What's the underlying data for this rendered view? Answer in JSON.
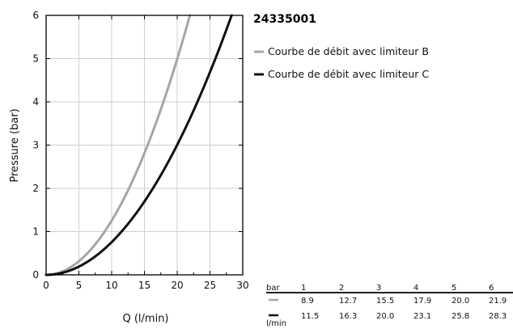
{
  "chart_data": {
    "type": "line",
    "title": "24335001",
    "xlabel": "Q (l/min)",
    "ylabel": "Pressure (bar)",
    "xlim": [
      0,
      30
    ],
    "ylim": [
      0,
      6
    ],
    "x_ticks": [
      "0",
      "5",
      "10",
      "15",
      "20",
      "25",
      "30"
    ],
    "y_ticks": [
      "0",
      "1",
      "2",
      "3",
      "4",
      "5",
      "6"
    ],
    "grid": true,
    "legend_position": "top-right",
    "series": [
      {
        "name": "Courbe de débit avec limiteur B",
        "color": "#a6a6a6",
        "x": [
          0,
          8.9,
          12.7,
          15.5,
          17.9,
          20.0,
          21.9
        ],
        "y": [
          0,
          1,
          2,
          3,
          4,
          5,
          6
        ]
      },
      {
        "name": "Courbe de débit avec limiteur C",
        "color": "#111111",
        "x": [
          0,
          11.5,
          16.3,
          20.0,
          23.1,
          25.8,
          28.3
        ],
        "y": [
          0,
          1,
          2,
          3,
          4,
          5,
          6
        ]
      }
    ],
    "table": {
      "header_label": "bar",
      "unit_label": "l/min",
      "pressures": [
        "1",
        "2",
        "3",
        "4",
        "5",
        "6"
      ],
      "rows": [
        {
          "color": "#a6a6a6",
          "values": [
            "8.9",
            "12.7",
            "15.5",
            "17.9",
            "20.0",
            "21.9"
          ]
        },
        {
          "color": "#111111",
          "values": [
            "11.5",
            "16.3",
            "20.0",
            "23.1",
            "25.8",
            "28.3"
          ]
        }
      ]
    }
  }
}
